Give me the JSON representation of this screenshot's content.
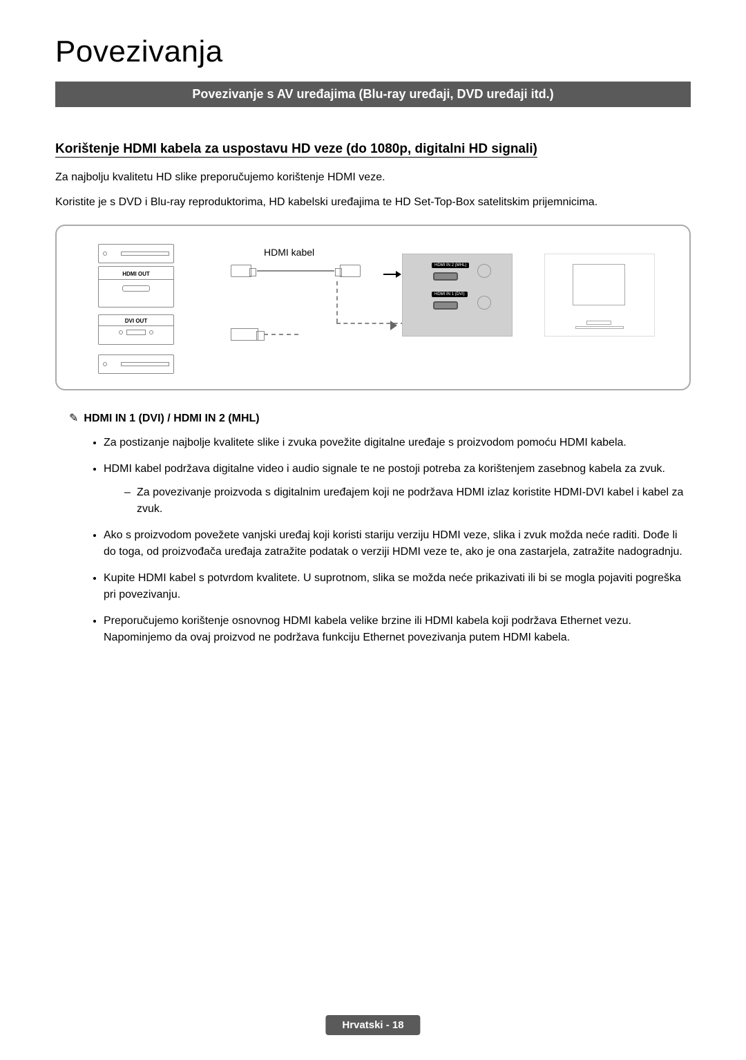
{
  "page": {
    "title": "Povezivanja",
    "banner": "Povezivanje s AV uređajima (Blu-ray uređaji, DVD uređaji itd.)",
    "sub_heading": "Korištenje HDMI kabela za uspostavu HD veze (do 1080p, digitalni HD signali)",
    "intro1": "Za najbolju kvalitetu HD slike preporučujemo korištenje HDMI veze.",
    "intro2": "Koristite je s DVD i Blu-ray reproduktorima, HD kabelski uređajima te HD Set-Top-Box satelitskim prijemnicima."
  },
  "diagram": {
    "cable_label": "HDMI kabel",
    "hdmi_out": "HDMI OUT",
    "dvi_out": "DVI OUT",
    "port_top": "HDMI IN 2 (MHL)",
    "port_bottom": "HDMI IN 1 (DVI)"
  },
  "note": {
    "icon": "✎",
    "title": "HDMI IN 1 (DVI) / HDMI IN 2 (MHL)"
  },
  "bullets": [
    "Za postizanje najbolje kvalitete slike i zvuka povežite digitalne uređaje s proizvodom pomoću HDMI kabela.",
    "HDMI kabel podržava digitalne video i audio signale te ne postoji potreba za korištenjem zasebnog kabela za zvuk.",
    "Ako s proizvodom povežete vanjski uređaj koji koristi stariju verziju HDMI veze, slika i zvuk možda neće raditi. Dođe li do toga, od proizvođača uređaja zatražite podatak o verziji HDMI veze te, ako je ona zastarjela, zatražite nadogradnju.",
    "Kupite HDMI kabel s potvrdom kvalitete. U suprotnom, slika se možda neće prikazivati ili bi se mogla pojaviti pogreška pri povezivanju.",
    "Preporučujemo korištenje osnovnog HDMI kabela velike brzine ili HDMI kabela koji podržava Ethernet vezu. Napominjemo da ovaj proizvod ne podržava funkciju Ethernet povezivanja putem HDMI kabela."
  ],
  "sub_bullet": "Za povezivanje proizvoda s digitalnim uređajem koji ne podržava HDMI izlaz koristite HDMI-DVI kabel i kabel za zvuk.",
  "footer": "Hrvatski - 18",
  "colors": {
    "banner_bg": "#5a5a5a",
    "banner_fg": "#ffffff",
    "text": "#000000",
    "diagram_border": "#aaaaaa",
    "panel_bg": "#d0d0d0"
  }
}
